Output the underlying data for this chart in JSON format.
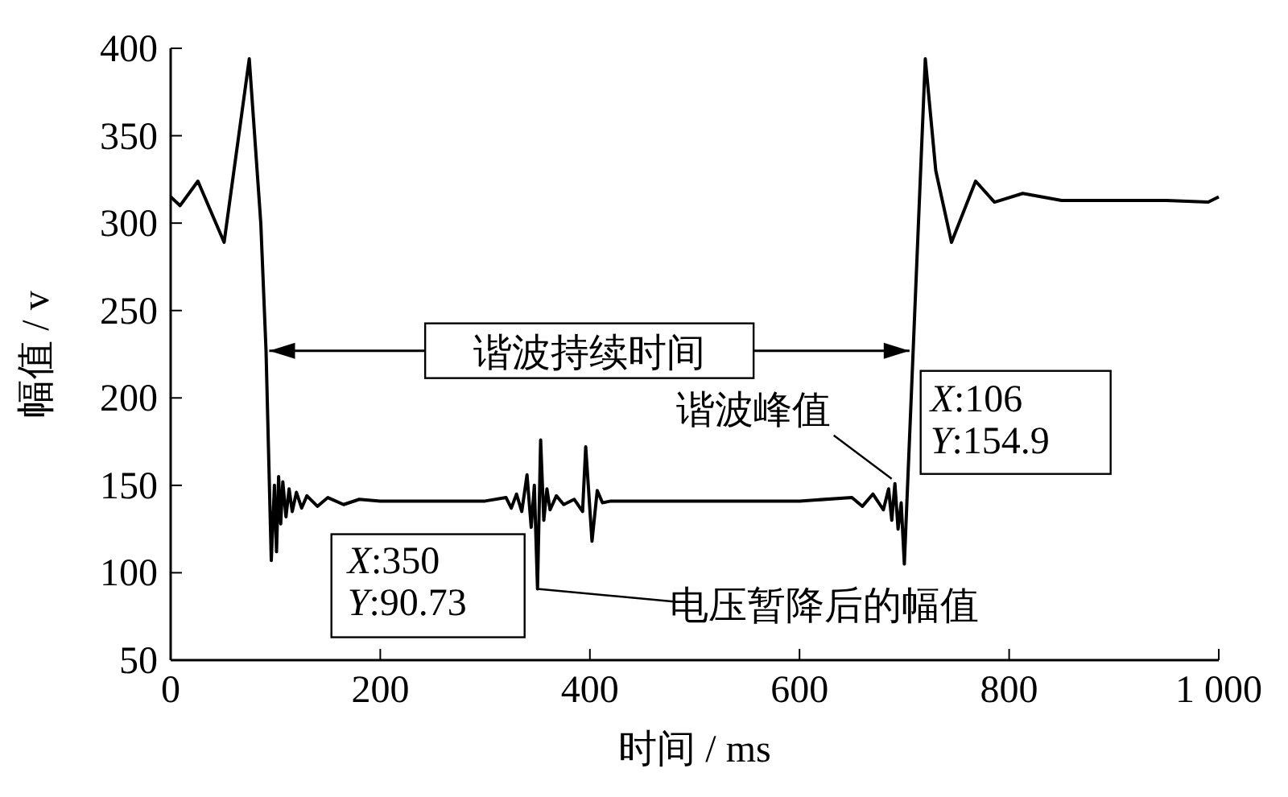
{
  "chart_data": {
    "type": "line",
    "xlabel": "时间 / ms",
    "ylabel": "幅值 / v",
    "x": [
      0,
      9,
      26,
      51,
      75,
      86,
      91,
      96,
      99,
      101,
      103,
      105,
      107,
      110,
      113,
      116,
      120,
      125,
      130,
      140,
      150,
      165,
      180,
      200,
      250,
      300,
      320,
      325,
      330,
      335,
      340,
      344,
      347,
      350,
      353,
      356,
      359,
      362,
      368,
      375,
      385,
      393,
      396,
      402,
      407,
      412,
      420,
      500,
      600,
      650,
      660,
      670,
      680,
      685,
      688,
      691,
      694,
      697,
      700,
      710,
      720,
      730,
      745,
      768,
      786,
      813,
      850,
      900,
      950,
      990,
      1000
    ],
    "series": [
      {
        "color": "#000000",
        "values": [
          315,
          310,
          324,
          289,
          394,
          300,
          227,
          107,
          150,
          112,
          155,
          128,
          152,
          132,
          148,
          135,
          146,
          137,
          144,
          138,
          143,
          139,
          142,
          141,
          141,
          141,
          143,
          137,
          145,
          135,
          156,
          126,
          150,
          90.73,
          176,
          130,
          148,
          136,
          144,
          139,
          142,
          135,
          172,
          118,
          147,
          140,
          141,
          141,
          141,
          143,
          138,
          145,
          136,
          148,
          130,
          151,
          125,
          140,
          105,
          250,
          394,
          330,
          289,
          324,
          312,
          317,
          313,
          313,
          313,
          312,
          315
        ]
      }
    ],
    "xlim": [
      0,
      1000
    ],
    "ylim": [
      50,
      400
    ],
    "xticks": [
      0,
      200,
      400,
      600,
      800,
      {
        "value": 1000,
        "label": "1 000"
      }
    ],
    "yticks": [
      50,
      100,
      150,
      200,
      250,
      300,
      350,
      400
    ],
    "annotations": [
      {
        "text": "谐波持续时间",
        "x": 708,
        "y": 227
      },
      {
        "text": "谐波峰值",
        "x": 691,
        "y": 151
      },
      {
        "text": "X:106\nY:154.9",
        "x": 691,
        "y": 151
      },
      {
        "text": "X:350\nY:90.73",
        "x": 350,
        "y": 90.73
      },
      "电压暂降后的幅值"
    ],
    "marker": "none",
    "line_style": "solid",
    "grid": false
  }
}
